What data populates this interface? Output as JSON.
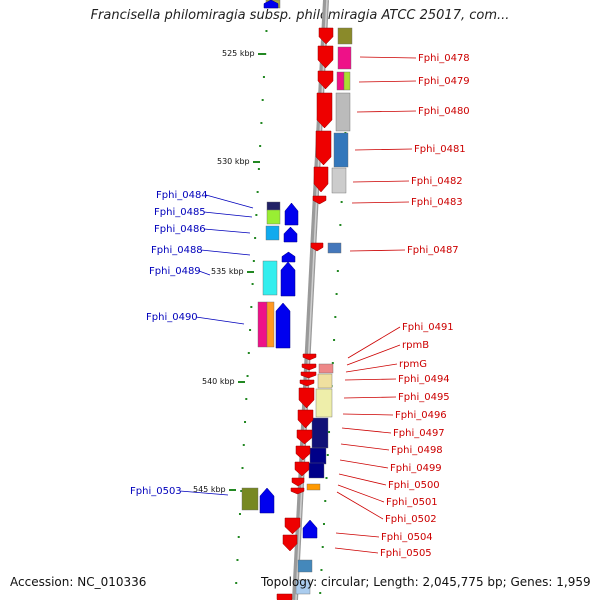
{
  "title": "Francisella philomiragia subsp. philomiragia ATCC 25017, com...",
  "footer": {
    "accession": "Accession: NC_010336",
    "topology": "Topology: circular; Length: 2,045,775 bp; Genes: 1,959"
  },
  "scale_labels": [
    "525 kbp",
    "530 kbp",
    "535 kbp",
    "540 kbp",
    "545 kbp"
  ],
  "genes_right": [
    "Fphi_0478",
    "Fphi_0479",
    "Fphi_0480",
    "Fphi_0481",
    "Fphi_0482",
    "Fphi_0483",
    "Fphi_0487",
    "Fphi_0491",
    "rpmB",
    "rpmG",
    "Fphi_0494",
    "Fphi_0495",
    "Fphi_0496",
    "Fphi_0497",
    "Fphi_0498",
    "Fphi_0499",
    "Fphi_0500",
    "Fphi_0501",
    "Fphi_0502",
    "Fphi_0504",
    "Fphi_0505"
  ],
  "genes_left": [
    "Fphi_0484",
    "Fphi_0485",
    "Fphi_0486",
    "Fphi_0488",
    "Fphi_0489",
    "Fphi_0490",
    "Fphi_0503"
  ],
  "colors": {
    "backbone": "#9a9a9a",
    "forward_gene": "#ee0000",
    "reverse_gene": "#0000ee",
    "label_right": "#cc0000",
    "label_left": "#0000bb",
    "ruler": "#228822"
  }
}
